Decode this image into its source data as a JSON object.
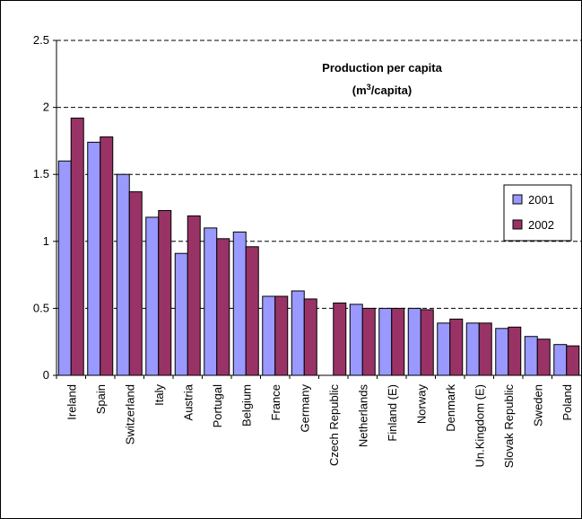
{
  "chart_data": {
    "type": "bar",
    "title": "Production per capita",
    "subtitle_prefix": "(m",
    "subtitle_sup": "3",
    "subtitle_suffix": "/capita)",
    "xlabel": "",
    "ylabel": "",
    "ylim": [
      0,
      2.5
    ],
    "yticks": [
      "0",
      "0.5",
      "1",
      "1.5",
      "2",
      "2.5"
    ],
    "ytick_values": [
      0,
      0.5,
      1,
      1.5,
      2,
      2.5
    ],
    "grid": "horizontal dashed",
    "legend_position": "right",
    "categories": [
      "Ireland",
      "Spain",
      "Switzerland",
      "Italy",
      "Austria",
      "Portugal",
      "Belgium",
      "France",
      "Germany",
      "Czech Republic",
      "Netherlands",
      "Finland (E)",
      "Norway",
      "Denmark",
      "Un.Kingdom (E)",
      "Slovak Republic",
      "Sweden",
      "Poland"
    ],
    "series": [
      {
        "name": "2001",
        "color": "#9999ff",
        "values": [
          1.6,
          1.74,
          1.5,
          1.18,
          0.91,
          1.1,
          1.07,
          0.59,
          0.63,
          null,
          0.53,
          0.5,
          0.5,
          0.39,
          0.39,
          0.35,
          0.29,
          0.23
        ]
      },
      {
        "name": "2002",
        "color": "#993366",
        "values": [
          1.92,
          1.78,
          1.37,
          1.23,
          1.19,
          1.02,
          0.96,
          0.59,
          0.57,
          0.54,
          0.5,
          0.5,
          0.49,
          0.42,
          0.39,
          0.36,
          0.27,
          0.22
        ]
      }
    ]
  }
}
